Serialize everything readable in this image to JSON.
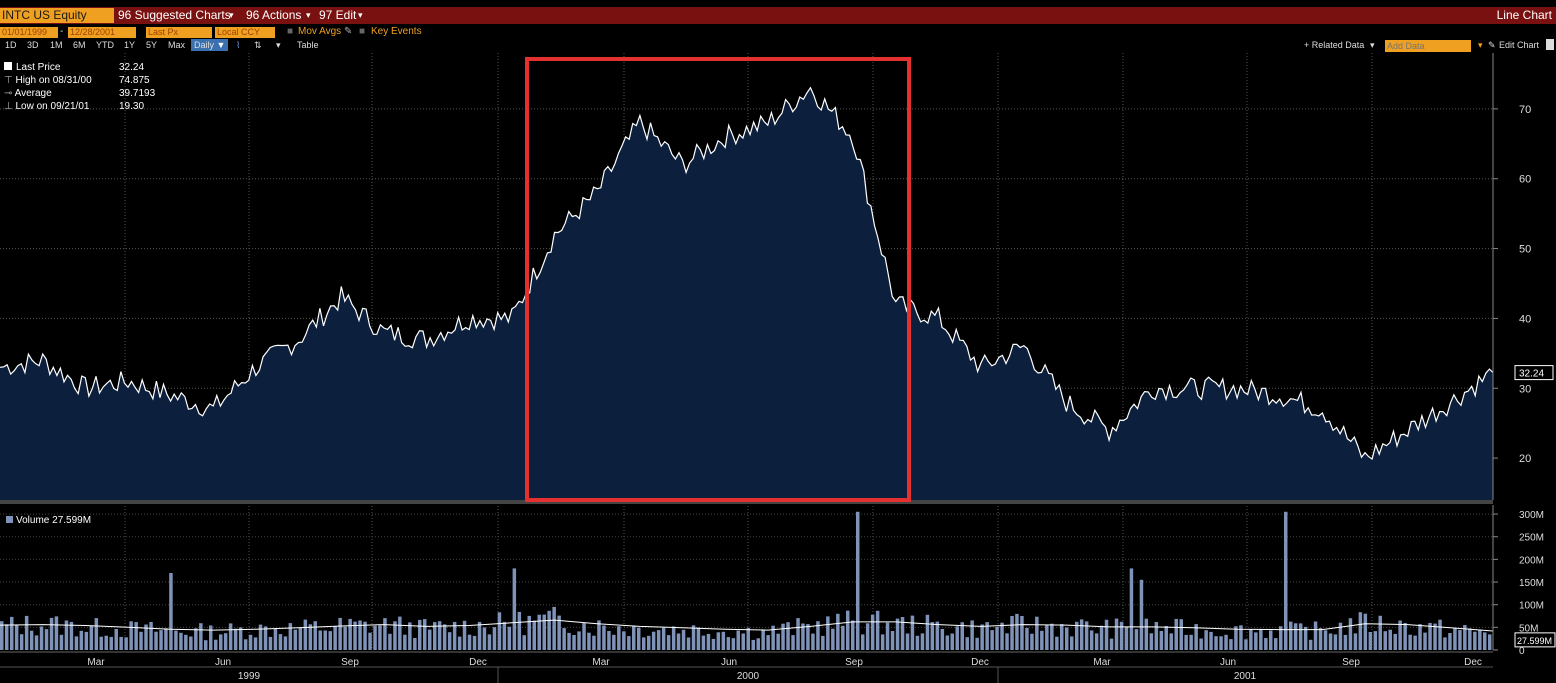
{
  "toolbar": {
    "ticker": "INTC US Equity",
    "menu_suggested": "96 Suggested Charts",
    "menu_actions": "96 Actions",
    "menu_edit": "97 Edit",
    "chart_type": "Line Chart"
  },
  "controls": {
    "start_date": "01/01/1999",
    "end_date": "12/28/2001",
    "price_field": "Last Px",
    "currency": "Local CCY",
    "mov_avgs": "Mov Avgs",
    "key_events": "Key Events",
    "periods": [
      "1D",
      "3D",
      "1M",
      "6M",
      "YTD",
      "1Y",
      "5Y",
      "Max"
    ],
    "frequency": "Daily",
    "table": "Table",
    "related_data": "+ Related Data",
    "add_data_placeholder": "Add Data",
    "edit_chart": "Edit Chart"
  },
  "legend": {
    "last_price_label": "Last Price",
    "last_price_value": "32.24",
    "high_label": "High on 08/31/00",
    "high_value": "74.875",
    "average_label": "Average",
    "average_value": "39.7193",
    "low_label": "Low on 09/21/01",
    "low_value": "19.30",
    "volume_label": "Volume 27.599M"
  },
  "colors": {
    "line": "#ffffff",
    "area_fill": "#0c1f3d",
    "volume_bar": "#7f93b8",
    "highlight_box": "#e53030",
    "toolbar_bg": "#7a1111",
    "field_bg": "#f0a020"
  },
  "chart_data": [
    {
      "type": "area",
      "ylim": [
        14,
        78
      ],
      "yticks": [
        20,
        30,
        40,
        50,
        60,
        70
      ],
      "last_value_tag": "32.24",
      "grid": true,
      "x": [
        "1999-01",
        "1999-02",
        "1999-03",
        "1999-04",
        "1999-05",
        "1999-06",
        "1999-07",
        "1999-08",
        "1999-09",
        "1999-10",
        "1999-11",
        "1999-12",
        "2000-01",
        "2000-02",
        "2000-03",
        "2000-04",
        "2000-05",
        "2000-06",
        "2000-07",
        "2000-08",
        "2000-09",
        "2000-10",
        "2000-11",
        "2000-12",
        "2001-01",
        "2001-02",
        "2001-03",
        "2001-04",
        "2001-05",
        "2001-06",
        "2001-07",
        "2001-08",
        "2001-09",
        "2001-10",
        "2001-11",
        "2001-12"
      ],
      "values": [
        33,
        34,
        30,
        31,
        29,
        27,
        33,
        37,
        43,
        38,
        37,
        40,
        40,
        52,
        58,
        68,
        62,
        66,
        68,
        73,
        66,
        42,
        40,
        33,
        36,
        28,
        24,
        30,
        30,
        30,
        29,
        27,
        20,
        24,
        28,
        32.24
      ]
    },
    {
      "type": "bar",
      "ylim": [
        0,
        320
      ],
      "yticks_labels": [
        "0",
        "50M",
        "100M",
        "150M",
        "200M",
        "250M",
        "300M"
      ],
      "yticks": [
        0,
        50,
        100,
        150,
        200,
        250,
        300
      ],
      "last_value_tag": "27.599M",
      "values": [
        55,
        60,
        52,
        48,
        45,
        42,
        48,
        50,
        55,
        58,
        50,
        55,
        62,
        70,
        55,
        50,
        48,
        45,
        42,
        55,
        65,
        60,
        55,
        50,
        58,
        55,
        50,
        52,
        48,
        45,
        45,
        45,
        62,
        55,
        48,
        40
      ],
      "moving_average": [
        55,
        56,
        54,
        50,
        46,
        44,
        46,
        49,
        53,
        56,
        52,
        54,
        60,
        66,
        58,
        52,
        49,
        46,
        44,
        52,
        62,
        62,
        56,
        52,
        56,
        55,
        51,
        51,
        49,
        46,
        45,
        45,
        58,
        56,
        49,
        42
      ]
    }
  ],
  "x_axis": {
    "month_labels": [
      "Mar",
      "Jun",
      "Sep",
      "Dec",
      "Mar",
      "Jun",
      "Sep",
      "Dec",
      "Mar",
      "Jun",
      "Sep",
      "Dec"
    ],
    "year_labels": [
      "1999",
      "2000",
      "2001"
    ]
  }
}
